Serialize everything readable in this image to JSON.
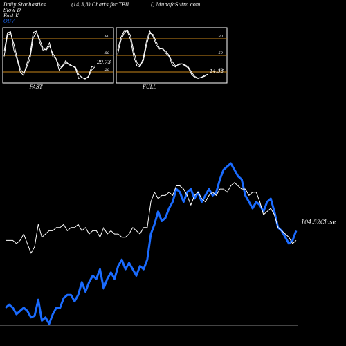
{
  "header": {
    "left": "Daily Stochastics",
    "center": "(14,3,3) Charts for TFII",
    "right": "() MunafaSutra.com"
  },
  "legend": [
    {
      "label": "Slow  D",
      "color": "#ffffff"
    },
    {
      "label": "Fast K",
      "color": "#ffffff"
    },
    {
      "label": "OBV",
      "color": "#1a6bff"
    }
  ],
  "colors": {
    "background": "#000000",
    "obv": "#1a6bff",
    "price": "#ffffff",
    "level_line": "#c8861a",
    "panel_border": "#ffffff"
  },
  "chart_data": [
    {
      "type": "line",
      "panel": "FAST",
      "label": "FAST",
      "current_value_label": "29.73",
      "ylim": [
        0,
        100
      ],
      "reference_levels": [
        20,
        50,
        80
      ],
      "ytick_labels": [
        "80",
        "50",
        "20"
      ],
      "series": [
        {
          "values": [
            58,
            93,
            95,
            60,
            42,
            18,
            12,
            34,
            52,
            94,
            96,
            74,
            60,
            62,
            74,
            48,
            44,
            22,
            30,
            40,
            32,
            30,
            26,
            6,
            8,
            5,
            10,
            28,
            30
          ]
        },
        {
          "values": [
            48,
            88,
            92,
            72,
            46,
            24,
            16,
            28,
            44,
            84,
            94,
            80,
            64,
            60,
            68,
            54,
            44,
            30,
            28,
            36,
            34,
            30,
            28,
            14,
            8,
            6,
            8,
            22,
            28
          ]
        }
      ]
    },
    {
      "type": "line",
      "panel": "FULL",
      "label": "FULL",
      "current_value_label": "14.33",
      "ylim": [
        0,
        100
      ],
      "reference_levels": [
        20,
        50,
        80
      ],
      "ytick_labels": [
        "80",
        "50",
        "20"
      ],
      "series": [
        {
          "values": [
            60,
            84,
            96,
            96,
            80,
            48,
            30,
            28,
            46,
            78,
            96,
            86,
            70,
            62,
            64,
            54,
            48,
            32,
            28,
            34,
            34,
            30,
            26,
            14,
            8,
            6,
            8,
            12,
            14
          ]
        },
        {
          "values": [
            52,
            78,
            92,
            98,
            88,
            58,
            36,
            30,
            40,
            70,
            92,
            90,
            76,
            64,
            62,
            58,
            50,
            38,
            30,
            32,
            34,
            32,
            28,
            18,
            10,
            7,
            8,
            10,
            14
          ]
        }
      ]
    },
    {
      "type": "line",
      "panel": "main",
      "last_close_label": "104.52Close",
      "series": [
        {
          "name": "OBV",
          "values": [
            10,
            12,
            10,
            6,
            8,
            10,
            8,
            4,
            5,
            15,
            2,
            4,
            0,
            6,
            10,
            10,
            16,
            18,
            18,
            14,
            18,
            26,
            20,
            26,
            30,
            28,
            34,
            22,
            28,
            32,
            28,
            36,
            40,
            34,
            38,
            34,
            30,
            36,
            34,
            40,
            56,
            62,
            70,
            64,
            66,
            72,
            76,
            84,
            82,
            76,
            82,
            84,
            78,
            82,
            76,
            80,
            84,
            80,
            82,
            90,
            96,
            98,
            100,
            96,
            92,
            90,
            80,
            76,
            72,
            76,
            74,
            70,
            76,
            78,
            70,
            60,
            58,
            54,
            50,
            52,
            58
          ]
        },
        {
          "name": "Price",
          "values": [
            52,
            52,
            52,
            50,
            52,
            56,
            50,
            44,
            48,
            62,
            54,
            56,
            58,
            58,
            60,
            60,
            62,
            58,
            60,
            60,
            62,
            58,
            60,
            56,
            58,
            58,
            54,
            60,
            56,
            58,
            56,
            56,
            54,
            54,
            56,
            60,
            58,
            56,
            60,
            60,
            76,
            82,
            78,
            80,
            80,
            82,
            80,
            86,
            86,
            84,
            80,
            74,
            80,
            82,
            78,
            76,
            80,
            82,
            80,
            84,
            84,
            82,
            86,
            88,
            86,
            84,
            84,
            80,
            82,
            82,
            76,
            68,
            70,
            72,
            68,
            60,
            58,
            56,
            54,
            50,
            52
          ]
        }
      ]
    }
  ]
}
